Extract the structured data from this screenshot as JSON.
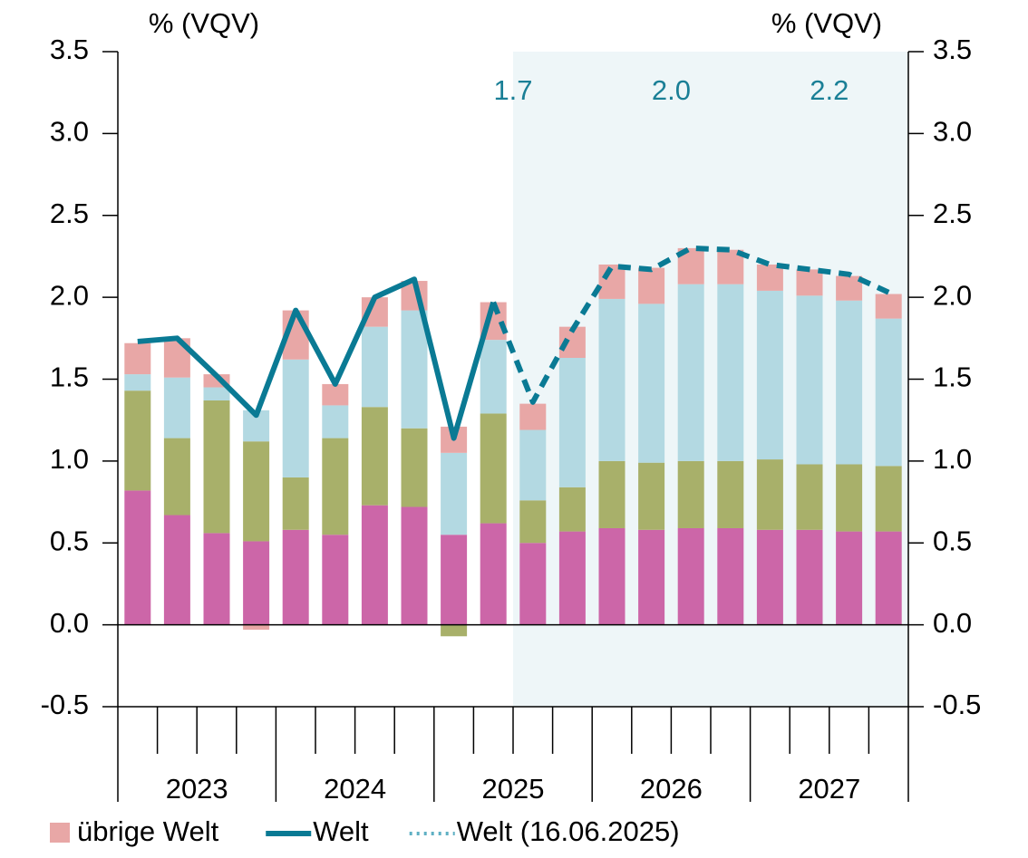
{
  "chart_data": {
    "type": "stacked_bar_line",
    "y_label": "% (VQV)",
    "y2_label": "% (VQV)",
    "x_groups": [
      "2023",
      "2024",
      "2025",
      "2026",
      "2027"
    ],
    "forecast_start_quarter": 10,
    "forecast_shade_color": "#eef6f8",
    "annual_averages": [
      {
        "year": "2025",
        "value": 1.7,
        "label": "1.7"
      },
      {
        "year": "2026",
        "value": 2.0,
        "label": "2.0"
      },
      {
        "year": "2027",
        "value": 2.2,
        "label": "2.2"
      }
    ],
    "ylim": [
      -0.5,
      3.5
    ],
    "yticks": [
      -0.5,
      {
        "value": 0,
        "label": "0.0"
      },
      0.5,
      {
        "value": 1,
        "label": "1.0"
      },
      1.5,
      {
        "value": 2,
        "label": "2.0"
      },
      2.5,
      {
        "value": 3,
        "label": "3.0"
      },
      3.5
    ],
    "y2lim": [
      -0.5,
      3.5
    ],
    "y2ticks": [
      -0.5,
      {
        "value": 0,
        "label": "0.0"
      },
      0.5,
      {
        "value": 1,
        "label": "1.0"
      },
      1.5,
      {
        "value": 2,
        "label": "2.0"
      },
      2.5,
      {
        "value": 3,
        "label": "3.0"
      },
      3.5
    ],
    "bar_series": [
      {
        "color": "#cc66a8",
        "values": [
          0.82,
          0.67,
          0.56,
          0.51,
          0.58,
          0.55,
          0.73,
          0.72,
          0.55,
          0.62,
          0.5,
          0.57,
          0.59,
          0.58,
          0.59,
          0.59,
          0.58,
          0.58,
          0.57,
          0.57
        ]
      },
      {
        "color": "#a8b06a",
        "values": [
          0.61,
          0.47,
          0.81,
          0.61,
          0.32,
          0.59,
          0.6,
          0.48,
          -0.07,
          0.67,
          0.26,
          0.27,
          0.41,
          0.41,
          0.41,
          0.41,
          0.43,
          0.4,
          0.41,
          0.4
        ]
      },
      {
        "color": "#b3d9e2",
        "values": [
          0.1,
          0.37,
          0.08,
          0.19,
          0.72,
          0.2,
          0.49,
          0.72,
          0.5,
          0.45,
          0.43,
          0.79,
          0.99,
          0.97,
          1.08,
          1.08,
          1.03,
          1.03,
          1.0,
          0.9
        ]
      },
      {
        "name": "übrige Welt",
        "color": "#e8a7a6",
        "values": [
          0.19,
          0.24,
          0.08,
          -0.03,
          0.3,
          0.13,
          0.18,
          0.18,
          0.16,
          0.23,
          0.16,
          0.19,
          0.21,
          0.22,
          0.22,
          0.21,
          0.16,
          0.16,
          0.15,
          0.15
        ]
      }
    ],
    "line_series": [
      {
        "name": "Welt",
        "color": "#0a7a94",
        "style": "solid",
        "forecast_style": "dashed",
        "values": [
          1.73,
          1.75,
          1.52,
          1.28,
          1.92,
          1.47,
          2.0,
          2.11,
          1.14,
          1.97,
          1.36,
          1.8,
          2.19,
          2.17,
          2.3,
          2.29,
          2.2,
          2.17,
          2.14,
          2.03
        ]
      },
      {
        "name": "Welt (16.06.2025)",
        "color": "#5fb0c4",
        "style": "dotted",
        "values": [
          null,
          null,
          null,
          null,
          null,
          null,
          null,
          null,
          null,
          null,
          null,
          null,
          null,
          null,
          null,
          null,
          null,
          null,
          null,
          null
        ]
      }
    ]
  }
}
